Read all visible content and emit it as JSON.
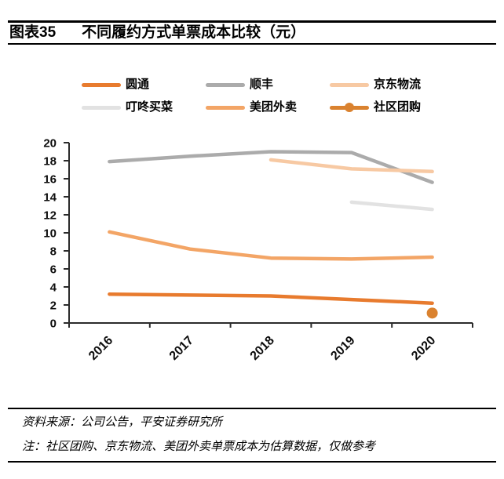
{
  "header": {
    "figure_label": "图表35",
    "title": "不同履约方式单票成本比较（元）"
  },
  "footer": {
    "source": "资料来源：公司公告，平安证券研究所",
    "note": "注：社区团购、京东物流、美团外卖单票成本为估算数据，仅做参考"
  },
  "chart_data": {
    "type": "line",
    "title": "不同履约方式单票成本比较（元）",
    "xlabel": "",
    "ylabel": "",
    "categories": [
      "2016",
      "2017",
      "2018",
      "2019",
      "2020"
    ],
    "series": [
      {
        "name": "圆通",
        "color": "#E87B2E",
        "marker": false,
        "values": [
          3.2,
          3.1,
          3.0,
          2.6,
          2.2
        ]
      },
      {
        "name": "顺丰",
        "color": "#ABABAB",
        "marker": false,
        "values": [
          17.9,
          18.5,
          19.0,
          18.9,
          15.6
        ]
      },
      {
        "name": "京东物流",
        "color": "#F7C9A3",
        "marker": false,
        "values": [
          null,
          null,
          18.1,
          17.1,
          16.8
        ]
      },
      {
        "name": "叮咚买菜",
        "color": "#E2E2E2",
        "marker": false,
        "values": [
          null,
          null,
          null,
          13.4,
          12.6
        ]
      },
      {
        "name": "美团外卖",
        "color": "#F3A566",
        "marker": false,
        "values": [
          10.1,
          8.2,
          7.2,
          7.1,
          7.3
        ]
      },
      {
        "name": "社区团购",
        "color": "#DA822F",
        "marker": true,
        "values": [
          null,
          null,
          null,
          null,
          1.1
        ]
      }
    ],
    "ylim": [
      0,
      20
    ],
    "ytick_step": 2,
    "axis_color": "#2b2b2b",
    "grid": false,
    "legend_position": "top",
    "x_label_rotation": -45
  }
}
